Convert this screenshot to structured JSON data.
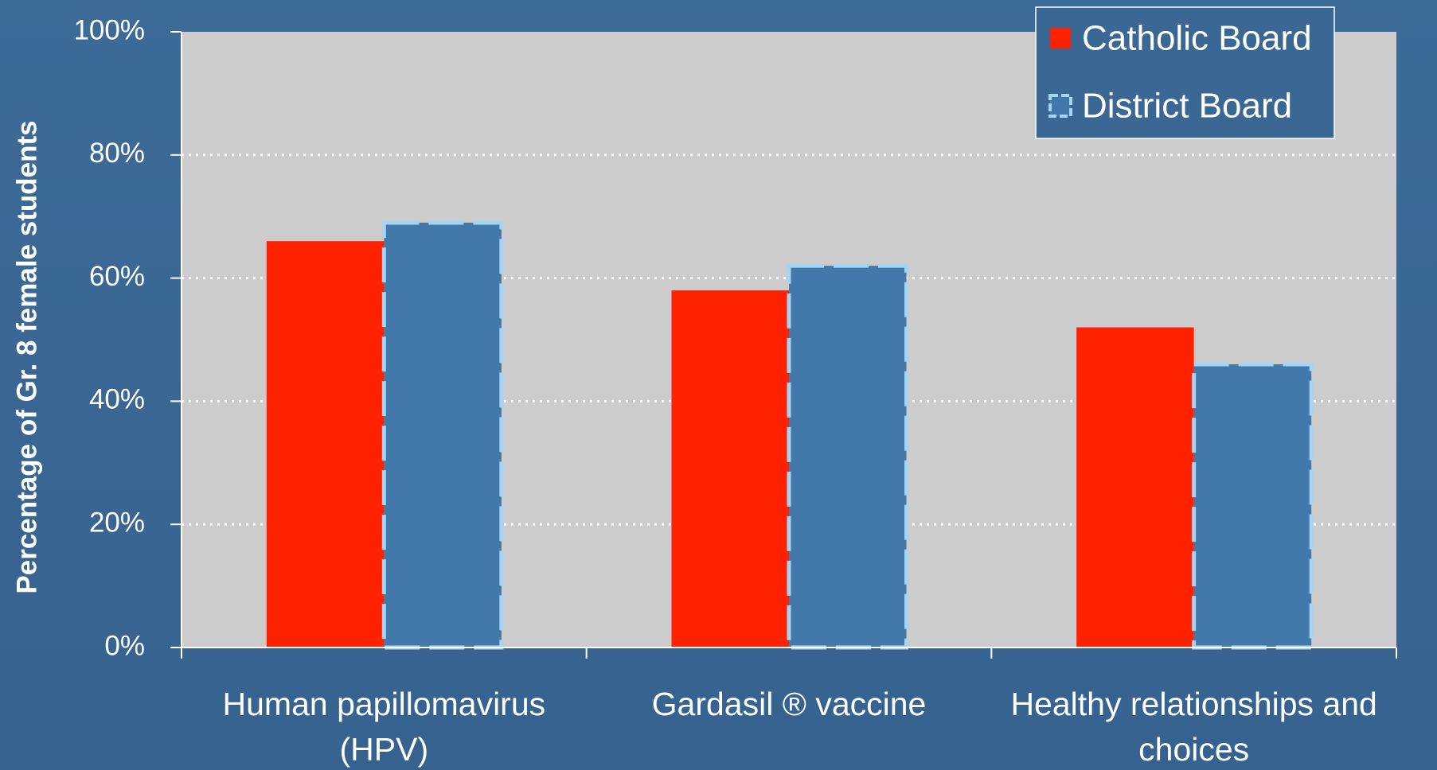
{
  "chart_data": {
    "type": "bar",
    "y_label": "Percentage of Gr. 8 female students",
    "categories": [
      "Human papillomavirus (HPV)",
      "Gardasil ® vaccine",
      "Healthy relationships and choices"
    ],
    "series": [
      {
        "name": "Catholic Board",
        "color": "#ff2200",
        "values": [
          66,
          58,
          52
        ]
      },
      {
        "name": "District Board",
        "color": "#4278aa",
        "values": [
          69,
          62,
          46
        ]
      }
    ],
    "ylim": [
      0,
      100
    ],
    "yticks": [
      {
        "value": 0,
        "label": "0%"
      },
      {
        "value": 20,
        "label": "20%"
      },
      {
        "value": 40,
        "label": "40%"
      },
      {
        "value": 60,
        "label": "60%"
      },
      {
        "value": 80,
        "label": "80%"
      },
      {
        "value": 100,
        "label": "100%"
      }
    ],
    "grid": true,
    "legend": "top-right"
  }
}
